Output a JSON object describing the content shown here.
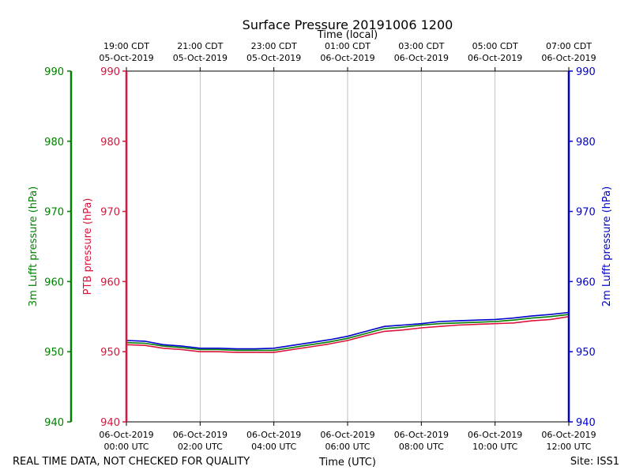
{
  "chart_data": {
    "type": "line",
    "title": "Surface Pressure 20191006 1200",
    "top_axis_label": "Time (local)",
    "bottom_axis_label": "Time (UTC)",
    "footer_left": "REAL TIME DATA, NOT CHECKED FOR QUALITY",
    "footer_right": "Site: ISS1",
    "x_range_hours": [
      0,
      12
    ],
    "y_range": [
      940,
      990
    ],
    "y_ticks": [
      940,
      950,
      960,
      970,
      980,
      990
    ],
    "x_ticks_utc": [
      {
        "hour": 0,
        "date": "06-Oct-2019",
        "time": "00:00 UTC"
      },
      {
        "hour": 2,
        "date": "06-Oct-2019",
        "time": "02:00 UTC"
      },
      {
        "hour": 4,
        "date": "06-Oct-2019",
        "time": "04:00 UTC"
      },
      {
        "hour": 6,
        "date": "06-Oct-2019",
        "time": "06:00 UTC"
      },
      {
        "hour": 8,
        "date": "06-Oct-2019",
        "time": "08:00 UTC"
      },
      {
        "hour": 10,
        "date": "06-Oct-2019",
        "time": "10:00 UTC"
      },
      {
        "hour": 12,
        "date": "06-Oct-2019",
        "time": "12:00 UTC"
      }
    ],
    "x_ticks_local": [
      {
        "hour": 0,
        "time": "19:00 CDT",
        "date": "05-Oct-2019"
      },
      {
        "hour": 2,
        "time": "21:00 CDT",
        "date": "05-Oct-2019"
      },
      {
        "hour": 4,
        "time": "23:00 CDT",
        "date": "05-Oct-2019"
      },
      {
        "hour": 6,
        "time": "01:00 CDT",
        "date": "06-Oct-2019"
      },
      {
        "hour": 8,
        "time": "03:00 CDT",
        "date": "06-Oct-2019"
      },
      {
        "hour": 10,
        "time": "05:00 CDT",
        "date": "06-Oct-2019"
      },
      {
        "hour": 12,
        "time": "07:00 CDT",
        "date": "06-Oct-2019"
      }
    ],
    "axes": [
      {
        "id": "lufft3m",
        "label": "3m Lufft pressure (hPa)",
        "color": "#008000",
        "side": "outer-left"
      },
      {
        "id": "ptb",
        "label": "PTB pressure (hPa)",
        "color": "#dc143c",
        "side": "left"
      },
      {
        "id": "lufft2m",
        "label": "2m Lufft pressure (hPa)",
        "color": "#0000cd",
        "side": "right"
      }
    ],
    "x": [
      0,
      0.5,
      1,
      1.5,
      2,
      2.5,
      3,
      3.5,
      4,
      4.5,
      5,
      5.5,
      6,
      6.5,
      7,
      7.5,
      8,
      8.5,
      9,
      9.5,
      10,
      10.5,
      11,
      11.5,
      12
    ],
    "series": [
      {
        "name": "PTB pressure",
        "color": "#dc143c",
        "values": [
          951.0,
          950.9,
          950.5,
          950.3,
          950.0,
          950.0,
          949.9,
          949.9,
          949.9,
          950.3,
          950.7,
          951.1,
          951.6,
          952.3,
          952.9,
          953.1,
          953.4,
          953.6,
          953.8,
          953.9,
          954.0,
          954.1,
          954.4,
          954.6,
          955.0
        ]
      },
      {
        "name": "3m Lufft pressure",
        "color": "#008000",
        "values": [
          951.3,
          951.2,
          950.8,
          950.6,
          950.3,
          950.3,
          950.2,
          950.2,
          950.2,
          950.6,
          951.0,
          951.4,
          951.9,
          952.6,
          953.3,
          953.5,
          953.8,
          954.0,
          954.1,
          954.2,
          954.3,
          954.5,
          954.8,
          955.0,
          955.3
        ]
      },
      {
        "name": "2m Lufft pressure",
        "color": "#0000cd",
        "values": [
          951.6,
          951.5,
          951.0,
          950.8,
          950.5,
          950.5,
          950.4,
          950.4,
          950.5,
          950.9,
          951.3,
          951.7,
          952.2,
          952.9,
          953.6,
          953.8,
          954.0,
          954.3,
          954.4,
          954.5,
          954.6,
          954.8,
          955.1,
          955.3,
          955.6
        ]
      }
    ]
  }
}
